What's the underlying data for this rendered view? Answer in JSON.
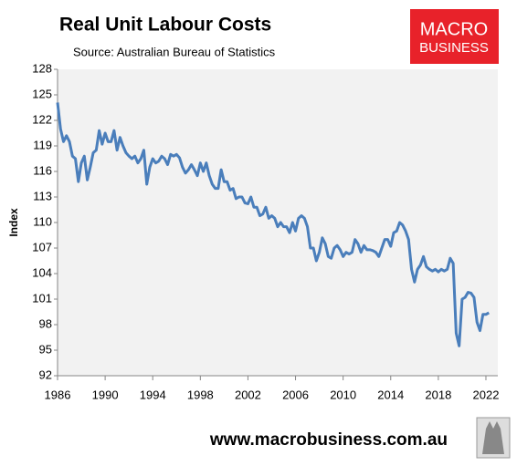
{
  "chart_data": {
    "type": "line",
    "title": "Real Unit Labour Costs",
    "subtitle": "Source: Australian Bureau of Statistics",
    "y_label": "Index",
    "logo": {
      "line1": "MACRO",
      "line2": "BUSINESS"
    },
    "footer": "www.macrobusiness.com.au",
    "xlim": [
      1986,
      2023
    ],
    "xticks": [
      1986,
      1990,
      1994,
      1998,
      2002,
      2006,
      2010,
      2014,
      2018,
      2022
    ],
    "ylim": [
      92,
      128
    ],
    "yticks": [
      92,
      95,
      98,
      101,
      104,
      107,
      110,
      113,
      116,
      119,
      122,
      125,
      128
    ],
    "grid": false,
    "x": [
      1986,
      1986.25,
      1986.5,
      1986.75,
      1987,
      1987.25,
      1987.5,
      1987.75,
      1988,
      1988.25,
      1988.5,
      1988.75,
      1989,
      1989.25,
      1989.5,
      1989.75,
      1990,
      1990.25,
      1990.5,
      1990.75,
      1991,
      1991.25,
      1991.5,
      1991.75,
      1992,
      1992.25,
      1992.5,
      1992.75,
      1993,
      1993.25,
      1993.5,
      1993.75,
      1994,
      1994.25,
      1994.5,
      1994.75,
      1995,
      1995.25,
      1995.5,
      1995.75,
      1996,
      1996.25,
      1996.5,
      1996.75,
      1997,
      1997.25,
      1997.5,
      1997.75,
      1998,
      1998.25,
      1998.5,
      1998.75,
      1999,
      1999.25,
      1999.5,
      1999.75,
      2000,
      2000.25,
      2000.5,
      2000.75,
      2001,
      2001.25,
      2001.5,
      2001.75,
      2002,
      2002.25,
      2002.5,
      2002.75,
      2003,
      2003.25,
      2003.5,
      2003.75,
      2004,
      2004.25,
      2004.5,
      2004.75,
      2005,
      2005.25,
      2005.5,
      2005.75,
      2006,
      2006.25,
      2006.5,
      2006.75,
      2007,
      2007.25,
      2007.5,
      2007.75,
      2008,
      2008.25,
      2008.5,
      2008.75,
      2009,
      2009.25,
      2009.5,
      2009.75,
      2010,
      2010.25,
      2010.5,
      2010.75,
      2011,
      2011.25,
      2011.5,
      2011.75,
      2012,
      2012.25,
      2012.5,
      2012.75,
      2013,
      2013.25,
      2013.5,
      2013.75,
      2014,
      2014.25,
      2014.5,
      2014.75,
      2015,
      2015.25,
      2015.5,
      2015.75,
      2016,
      2016.25,
      2016.5,
      2016.75,
      2017,
      2017.25,
      2017.5,
      2017.75,
      2018,
      2018.25,
      2018.5,
      2018.75,
      2019,
      2019.25,
      2019.5,
      2019.75,
      2020,
      2020.25,
      2020.5,
      2020.75,
      2021,
      2021.25,
      2021.5,
      2021.75,
      2022,
      2022.25
    ],
    "series": [
      {
        "name": "Real Unit Labour Costs",
        "color": "#4a7ebb",
        "values": [
          124.1,
          121,
          119.5,
          120.2,
          119.5,
          117.8,
          117.5,
          114.8,
          117,
          117.8,
          115,
          116.5,
          118.2,
          118.5,
          120.8,
          119.2,
          120.5,
          119.5,
          119.5,
          120.8,
          118.5,
          120,
          119,
          118.2,
          117.8,
          117.5,
          117.8,
          117,
          117.5,
          118.5,
          114.5,
          116.5,
          117.5,
          117,
          117.2,
          117.8,
          117.5,
          116.8,
          118,
          117.8,
          118,
          117.6,
          116.5,
          115.8,
          116.2,
          116.8,
          116.2,
          115.5,
          117,
          116,
          117,
          115.5,
          114.5,
          114,
          114,
          116.2,
          114.8,
          114.8,
          113.8,
          114,
          112.8,
          113,
          113,
          112.3,
          112.2,
          113,
          111.8,
          111.8,
          110.8,
          111,
          111.8,
          110.5,
          110.8,
          110.5,
          109.5,
          110,
          109.5,
          109.5,
          108.8,
          110,
          109,
          110.5,
          110.8,
          110.5,
          109.5,
          107,
          107,
          105.5,
          106.5,
          108.2,
          107.5,
          106,
          105.8,
          107,
          107.3,
          106.8,
          106,
          106.5,
          106.3,
          106.5,
          108,
          107.5,
          106.5,
          107.3,
          106.8,
          106.8,
          106.7,
          106.5,
          106,
          107,
          108,
          108,
          107.2,
          108.8,
          109,
          110,
          109.7,
          109,
          108,
          104.5,
          103,
          104.5,
          105,
          106,
          104.8,
          104.5,
          104.3,
          104.5,
          104.2,
          104.5,
          104.3,
          104.5,
          105.8,
          105.2,
          97,
          95.5,
          101,
          101.2,
          101.8,
          101.7,
          101.2,
          98.3,
          97.3,
          99.2,
          99.2,
          99.4
        ]
      }
    ]
  }
}
